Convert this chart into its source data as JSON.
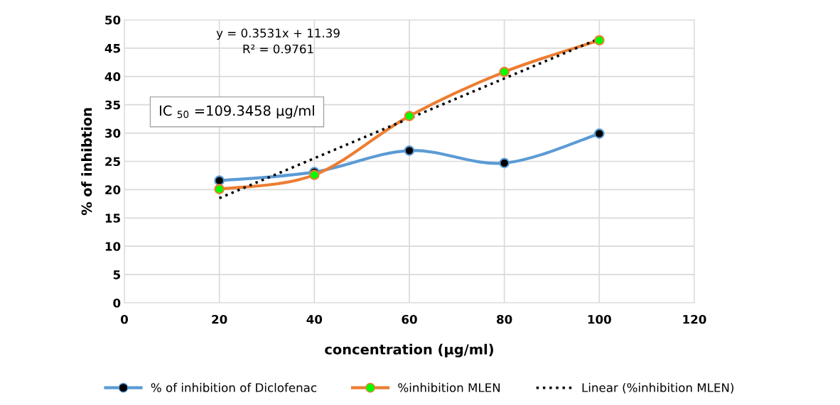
{
  "chart_data": {
    "type": "line",
    "xlabel": "concentration (μg/ml)",
    "ylabel": "% of inhibtion",
    "x": [
      20,
      40,
      60,
      80,
      100
    ],
    "series": [
      {
        "name": "% of inhibition of Diclofenac",
        "color": "#5b9bd5",
        "values": [
          21.6,
          23.1,
          26.9,
          24.7,
          29.9
        ],
        "marker": "circle",
        "line_style": "solid"
      },
      {
        "name": "%inhibition MLEN",
        "color": "#ed7d31",
        "values": [
          20.1,
          22.6,
          33.0,
          40.8,
          46.4
        ],
        "marker": "circle",
        "line_style": "solid"
      },
      {
        "name": "Linear (%inhibition MLEN)",
        "color": "#000000",
        "x": [
          20,
          100
        ],
        "values": [
          18.5,
          46.7
        ],
        "marker": "none",
        "line_style": "dotted"
      }
    ],
    "xlim": [
      0,
      120
    ],
    "xticks": [
      0,
      20,
      40,
      60,
      80,
      100,
      120
    ],
    "ylim": [
      0,
      50
    ],
    "yticks": [
      0,
      5,
      10,
      15,
      20,
      25,
      30,
      35,
      40,
      45,
      50
    ],
    "grid": true,
    "legend": "bottom",
    "annotations": [
      "y = 0.3531x + 11.39\nR² = 0.9761",
      "IC $_{50}$ =109.3458 μg/ml"
    ]
  }
}
